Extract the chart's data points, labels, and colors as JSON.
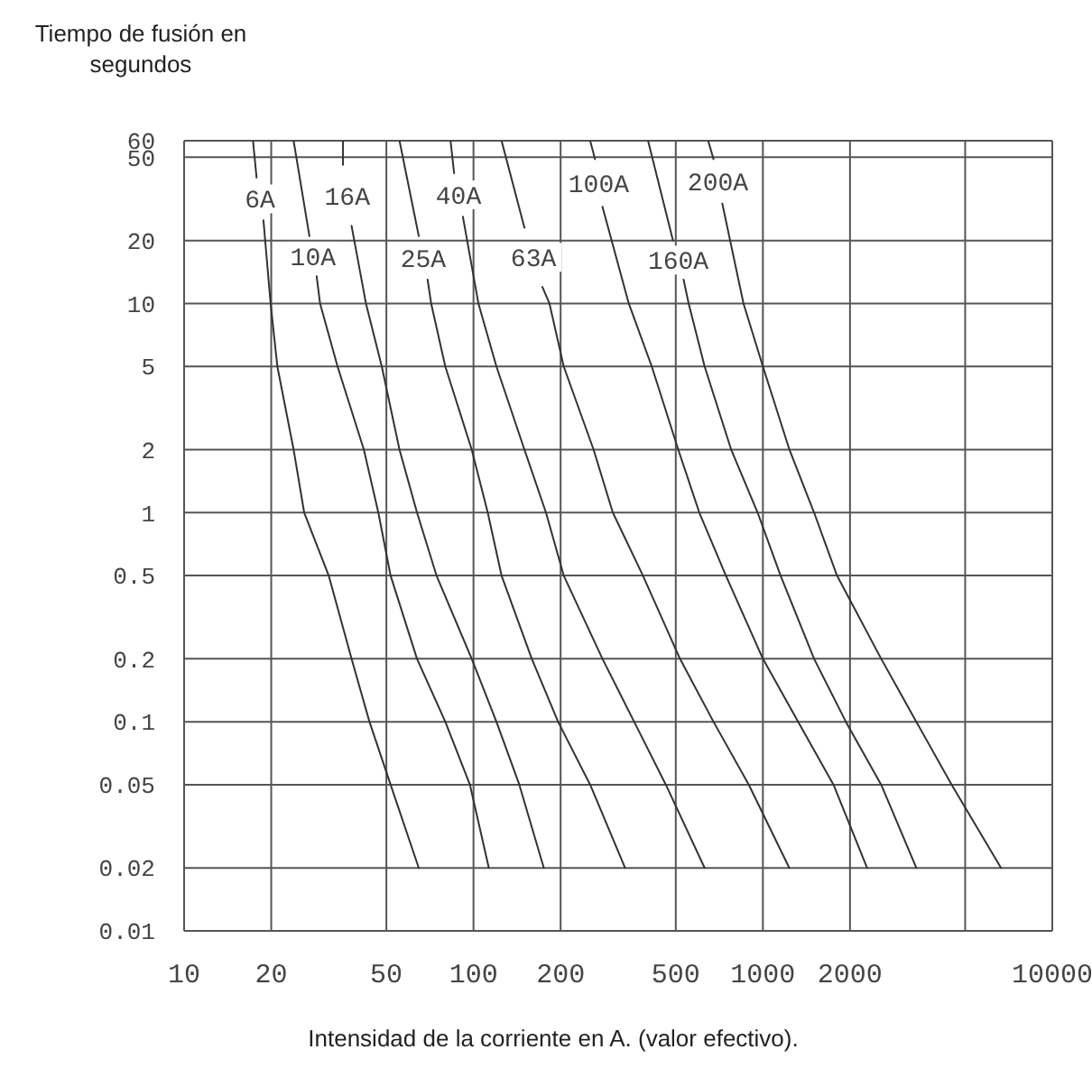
{
  "chart_data": {
    "type": "line",
    "xlabel": "Intensidad de la corriente en A. (valor efectivo).",
    "ylabel": "Tiempo de fusión en segundos",
    "log": "xy",
    "grid": true,
    "xlim": [
      10,
      10000
    ],
    "xticks": [
      10,
      20,
      50,
      100,
      200,
      500,
      1000,
      2000,
      {
        "value": 5000,
        "label": null
      },
      10000
    ],
    "ylim": [
      0.01,
      60
    ],
    "yticks": [
      0.01,
      0.02,
      0.05,
      0.1,
      0.2,
      0.5,
      1,
      2,
      5,
      10,
      20,
      50,
      60
    ],
    "series": [
      {
        "name": "6A",
        "color": "#333333",
        "x": [
          17.3,
          17.8,
          null,
          18.8,
          19.9,
          21,
          23.9,
          26,
          31.6,
          37.9,
          43.7,
          51.7,
          64.7
        ],
        "values": [
          60,
          40,
          null,
          25,
          10,
          5,
          2,
          1,
          0.5,
          0.2,
          0.1,
          0.05,
          0.02
        ]
      },
      {
        "name": "10A",
        "color": "#333333",
        "x": [
          23.9,
          27.1,
          null,
          28.7,
          29.5,
          33.9,
          41.8,
          46.9,
          51.7,
          63.8,
          79.9,
          97.2,
          113
        ],
        "values": [
          60,
          21,
          null,
          13.5,
          10,
          5,
          2,
          1,
          0.5,
          0.2,
          0.1,
          0.05,
          0.02
        ]
      },
      {
        "name": "16A",
        "color": "#333333",
        "x": [
          35.4,
          35.4,
          null,
          37.9,
          42.5,
          48.2,
          55.5,
          63.8,
          74.5,
          98.6,
          120,
          144,
          175
        ],
        "values": [
          60,
          46,
          null,
          23.5,
          10,
          5,
          2,
          1,
          0.5,
          0.2,
          0.1,
          0.05,
          0.02
        ]
      },
      {
        "name": "25A",
        "color": "#333333",
        "x": [
          55.5,
          64.7,
          null,
          69.4,
          71.4,
          79.9,
          98.6,
          112,
          125,
          159,
          196,
          253,
          334
        ],
        "values": [
          60,
          21,
          null,
          13,
          10,
          5,
          2,
          1,
          0.5,
          0.2,
          0.1,
          0.05,
          0.02
        ]
      },
      {
        "name": "40A",
        "color": "#333333",
        "x": [
          83.3,
          85.7,
          null,
          91.9,
          104,
          120,
          150,
          178,
          205,
          279,
          359,
          462,
          629
        ],
        "values": [
          60,
          42,
          null,
          26,
          10,
          5,
          2,
          1,
          0.5,
          0.2,
          0.1,
          0.05,
          0.02
        ]
      },
      {
        "name": "63A",
        "color": "#333333",
        "x": [
          125,
          150,
          null,
          173,
          183,
          205,
          260,
          303,
          385,
          517,
          675,
          894,
          1234
        ],
        "values": [
          60,
          23,
          null,
          12,
          10,
          5,
          2,
          1,
          0.5,
          0.2,
          0.1,
          0.05,
          0.02
        ]
      },
      {
        "name": "100A",
        "color": "#333333",
        "x": [
          253,
          263,
          null,
          279,
          344,
          413,
          510,
          603,
          745,
          1000,
          1324,
          1754,
          2291
        ],
        "values": [
          60,
          49,
          null,
          29,
          10,
          5,
          2,
          1,
          0.5,
          0.2,
          0.1,
          0.05,
          0.02
        ]
      },
      {
        "name": "160A",
        "color": "#333333",
        "x": [
          401,
          489,
          null,
          532,
          554,
          629,
          777,
          959,
          1151,
          1503,
          1935,
          2563,
          3390
        ],
        "values": [
          60,
          20,
          null,
          13,
          10,
          5,
          2,
          1,
          0.5,
          0.2,
          0.1,
          0.05,
          0.02
        ]
      },
      {
        "name": "200A",
        "color": "#333333",
        "x": [
          647,
          675,
          null,
          724,
          857,
          1000,
          1235,
          1503,
          1803,
          2563,
          3390,
          4490,
          6653
        ],
        "values": [
          60,
          49,
          null,
          30,
          10,
          5,
          2,
          1,
          0.5,
          0.2,
          0.1,
          0.05,
          0.02
        ]
      }
    ]
  }
}
